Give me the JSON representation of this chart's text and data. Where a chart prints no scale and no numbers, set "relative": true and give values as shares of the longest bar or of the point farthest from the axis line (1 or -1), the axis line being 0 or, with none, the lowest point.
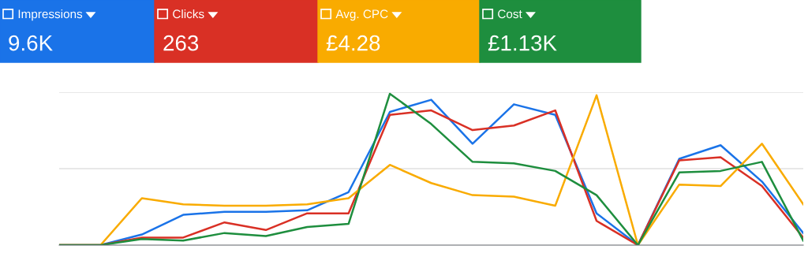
{
  "chart_data": {
    "type": "line",
    "relative": true,
    "legend": "top left",
    "grid": "y",
    "marker": "none",
    "line_style": "solid",
    "categories": [
      null,
      null,
      null,
      null,
      null,
      null,
      null,
      null,
      null,
      null,
      null,
      null,
      null,
      null,
      null,
      null,
      null,
      null,
      null
    ],
    "series": [
      {
        "name": "Impressions",
        "color": "#1a73e8",
        "values": [
          0,
          0,
          0.07,
          0.2,
          0.22,
          0.22,
          0.23,
          0.35,
          0.88,
          0.96,
          0.67,
          0.93,
          0.86,
          0.21,
          0,
          0.57,
          0.66,
          0.42,
          0.08
        ]
      },
      {
        "name": "Clicks",
        "color": "#d93025",
        "values": [
          0,
          0,
          0.05,
          0.05,
          0.15,
          0.1,
          0.21,
          0.21,
          0.86,
          0.89,
          0.76,
          0.79,
          0.89,
          0.16,
          0,
          0.56,
          0.58,
          0.39,
          0.05
        ]
      },
      {
        "name": "Avg. CPC",
        "color": "#f9ab00",
        "values": [
          0,
          0,
          0.31,
          0.27,
          0.26,
          0.26,
          0.27,
          0.31,
          0.53,
          0.41,
          0.33,
          0.32,
          0.26,
          0.99,
          0,
          0.4,
          0.39,
          0.67,
          0.27
        ]
      },
      {
        "name": "Cost",
        "color": "#1e8e3e",
        "values": [
          0,
          0,
          0.04,
          0.03,
          0.08,
          0.06,
          0.12,
          0.14,
          1.0,
          0.8,
          0.55,
          0.54,
          0.49,
          0.33,
          0,
          0.48,
          0.49,
          0.55,
          0.03
        ]
      }
    ],
    "ref_lines": [
      {
        "axis": "y",
        "value": 0.505,
        "color": "#e0e0e0",
        "line_style": "solid"
      }
    ],
    "annotations": [
      "9.6K",
      "263",
      "£4.28",
      "£1.13K"
    ]
  }
}
